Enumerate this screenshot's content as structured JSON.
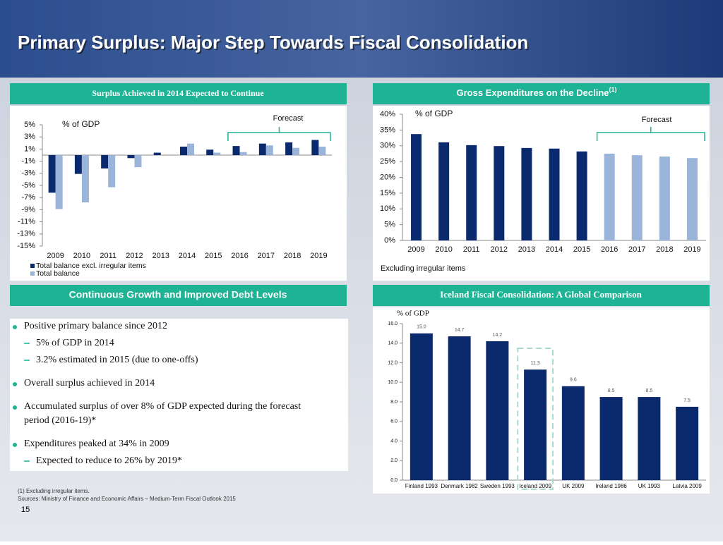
{
  "title": "Primary Surplus: Major Step Towards Fiscal Consolidation",
  "chart_data": [
    {
      "type": "bar",
      "title": "Surplus Achieved in 2014 Expected to Continue",
      "y_label": "% of GDP",
      "annotation": "Forecast",
      "categories": [
        "2009",
        "2010",
        "2011",
        "2012",
        "2013",
        "2014",
        "2015",
        "2016",
        "2017",
        "2018",
        "2019"
      ],
      "series": [
        {
          "name": "Total balance  excl. irregular items",
          "color": "#0b2a6e",
          "values": [
            -6.2,
            -3.1,
            -2.2,
            -0.5,
            0.4,
            1.4,
            0.9,
            1.5,
            1.9,
            2.1,
            2.5
          ]
        },
        {
          "name": "Total balance",
          "color": "#9bb4d9",
          "values": [
            -8.9,
            -7.8,
            -5.3,
            -2.0,
            0,
            1.9,
            0.4,
            0.5,
            1.6,
            1.2,
            1.4
          ]
        }
      ],
      "ylim": [
        -15,
        5
      ],
      "yticks": [
        {
          "value": 5,
          "label": "5%"
        },
        {
          "value": 3,
          "label": "3%"
        },
        {
          "value": 1,
          "label": "1%"
        },
        {
          "value": -1,
          "label": "-1%"
        },
        {
          "value": -3,
          "label": "-3%"
        },
        {
          "value": -5,
          "label": "-5%"
        },
        {
          "value": -7,
          "label": "-7%"
        },
        {
          "value": -9,
          "label": "-9%"
        },
        {
          "value": -11,
          "label": "-11%"
        },
        {
          "value": -13,
          "label": "-13%"
        },
        {
          "value": -15,
          "label": "-15%"
        }
      ],
      "grid": false
    },
    {
      "type": "bar",
      "title": "Gross Expenditures on the Decline",
      "title_note": "(1)",
      "y_label": "% of GDP",
      "annotation": "Forecast",
      "note": "Excluding irregular items",
      "categories": [
        "2009",
        "2010",
        "2011",
        "2012",
        "2013",
        "2014",
        "2015",
        "2016",
        "2017",
        "2018",
        "2019"
      ],
      "values": [
        33.7,
        31.1,
        30.2,
        29.9,
        29.3,
        29.1,
        28.2,
        27.5,
        27.0,
        26.6,
        26.1
      ],
      "colors": [
        "#0b2a6e",
        "#0b2a6e",
        "#0b2a6e",
        "#0b2a6e",
        "#0b2a6e",
        "#0b2a6e",
        "#0b2a6e",
        "#9bb4d9",
        "#9bb4d9",
        "#9bb4d9",
        "#9bb4d9"
      ],
      "ylim": [
        0,
        40
      ],
      "yticks": [
        {
          "value": 0,
          "label": "0%"
        },
        {
          "value": 5,
          "label": "5%"
        },
        {
          "value": 10,
          "label": "10%"
        },
        {
          "value": 15,
          "label": "15%"
        },
        {
          "value": 20,
          "label": "20%"
        },
        {
          "value": 25,
          "label": "25%"
        },
        {
          "value": 30,
          "label": "30%"
        },
        {
          "value": 35,
          "label": "35%"
        },
        {
          "value": 40,
          "label": "40%"
        }
      ],
      "grid": false
    },
    {
      "type": "bar",
      "title": "Iceland Fiscal Consolidation: A Global Comparison",
      "y_label": "% of GDP",
      "categories": [
        "Finland 1993",
        "Denmark 1982",
        "Sweden 1993",
        "Iceland 2009",
        "UK 2009",
        "Ireland 1986",
        "UK 1993",
        "Latvia 2009"
      ],
      "values": [
        15,
        14.7,
        14.2,
        11.3,
        9.6,
        8.5,
        8.5,
        7.5
      ],
      "value_labels": [
        "15.0",
        "14.7",
        "14.2",
        "11.3",
        "9.6",
        "8.5",
        "8.5",
        "7.5"
      ],
      "color": "#0b2a6e",
      "highlight": 3,
      "ylim": [
        0,
        16
      ],
      "yticks": [
        {
          "value": 0,
          "label": "0.0"
        },
        {
          "value": 2,
          "label": "2.0"
        },
        {
          "value": 4,
          "label": "4.0"
        },
        {
          "value": 6,
          "label": "6.0"
        },
        {
          "value": 8,
          "label": "8.0"
        },
        {
          "value": 10,
          "label": "10.0"
        },
        {
          "value": 12,
          "label": "12.0"
        },
        {
          "value": 14,
          "label": "14.0"
        },
        {
          "value": 16,
          "label": "16.0"
        }
      ],
      "grid": false
    }
  ],
  "text_panel": {
    "header": "Continuous Growth and Improved Debt Levels",
    "bullets": [
      {
        "text": "Positive primary balance since 2012",
        "sub": [
          "5% of GDP in 2014",
          "3.2% estimated in 2015 (due to one-offs)"
        ]
      },
      {
        "text": "Overall surplus achieved in 2014",
        "sub": []
      },
      {
        "text": [
          "Accumulated surplus of over 8% of GDP expected during the forecast",
          "period (2016-19)*"
        ],
        "sub": []
      },
      {
        "text": "Expenditures peaked at 34% in 2009",
        "sub": [
          "Expected to reduce to 26% by 2019*"
        ]
      }
    ]
  },
  "footnote": "(1) Excluding irregular items.",
  "sources": "Sources: Ministry of Finance and Economic Affairs – Medium-Term Fiscal Outlook 2015",
  "page_number": "15"
}
